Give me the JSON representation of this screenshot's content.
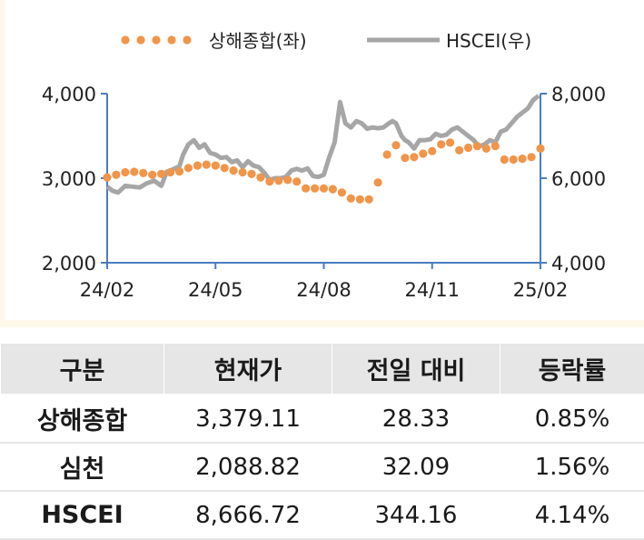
{
  "chart_data": {
    "type": "line",
    "legend": [
      "상해종합(좌)",
      "HSCEI(우)"
    ],
    "legend_position": "top",
    "x_tick_labels": [
      "24/02",
      "24/05",
      "24/08",
      "24/11",
      "25/02"
    ],
    "y_left_ticks": [
      "4,000",
      "3,000",
      "2,000"
    ],
    "y_right_ticks": [
      "8,000",
      "6,000",
      "4,000"
    ],
    "y_left_range": [
      2000,
      4000
    ],
    "y_right_range": [
      4000,
      8000
    ],
    "x_range": [
      0,
      12
    ],
    "grid": false,
    "colors": {
      "shanghai": "#f0954a",
      "hscei": "#a6a6a6",
      "axis": "#4a7dbf"
    },
    "series": [
      {
        "name": "상해종합(좌)",
        "axis": "left",
        "style": "dotted",
        "x": [
          0.0,
          0.25,
          0.5,
          0.75,
          1.0,
          1.25,
          1.5,
          1.75,
          2.0,
          2.25,
          2.5,
          2.75,
          3.0,
          3.25,
          3.5,
          3.75,
          4.0,
          4.25,
          4.5,
          4.75,
          5.0,
          5.25,
          5.5,
          5.75,
          6.0,
          6.25,
          6.5,
          6.75,
          7.0,
          7.25,
          7.5,
          7.75,
          8.0,
          8.25,
          8.5,
          8.75,
          9.0,
          9.25,
          9.5,
          9.75,
          10.0,
          10.25,
          10.5,
          10.75,
          11.0,
          11.25,
          11.5,
          11.75,
          12.0
        ],
        "y": [
          3010,
          3040,
          3070,
          3075,
          3060,
          3040,
          3050,
          3070,
          3080,
          3120,
          3150,
          3160,
          3150,
          3120,
          3090,
          3070,
          3050,
          3010,
          2960,
          2970,
          2980,
          2960,
          2880,
          2880,
          2880,
          2870,
          2830,
          2760,
          2750,
          2750,
          2950,
          3280,
          3390,
          3240,
          3250,
          3290,
          3320,
          3400,
          3420,
          3330,
          3360,
          3380,
          3350,
          3380,
          3220,
          3220,
          3230,
          3250,
          3350
        ]
      },
      {
        "name": "HSCEI(우)",
        "axis": "right",
        "style": "solid",
        "x": [
          0.0,
          0.15,
          0.3,
          0.5,
          0.7,
          0.9,
          1.1,
          1.3,
          1.5,
          1.65,
          1.8,
          2.0,
          2.1,
          2.25,
          2.4,
          2.55,
          2.7,
          2.85,
          3.0,
          3.15,
          3.3,
          3.45,
          3.6,
          3.75,
          3.9,
          4.05,
          4.2,
          4.35,
          4.5,
          4.65,
          4.8,
          4.95,
          5.1,
          5.25,
          5.4,
          5.55,
          5.7,
          5.85,
          6.0,
          6.15,
          6.3,
          6.45,
          6.6,
          6.75,
          6.9,
          7.05,
          7.2,
          7.35,
          7.5,
          7.65,
          7.8,
          7.9,
          8.0,
          8.05,
          8.15,
          8.25,
          8.35,
          8.5,
          8.65,
          8.8,
          8.95,
          9.1,
          9.25,
          9.4,
          9.55,
          9.7,
          9.85,
          10.0,
          10.15,
          10.3,
          10.45,
          10.6,
          10.75,
          10.9,
          11.05,
          11.2,
          11.35,
          11.5,
          11.65,
          11.8,
          11.95
        ],
        "y": [
          5800,
          5700,
          5660,
          5820,
          5800,
          5780,
          5880,
          5940,
          5820,
          6150,
          6200,
          6280,
          6550,
          6800,
          6900,
          6720,
          6800,
          6600,
          6560,
          6480,
          6500,
          6380,
          6420,
          6260,
          6400,
          6300,
          6260,
          6130,
          5960,
          6000,
          6000,
          6030,
          6180,
          6220,
          6180,
          6230,
          6050,
          6030,
          6080,
          6500,
          6850,
          7800,
          7300,
          7200,
          7350,
          7300,
          7170,
          7200,
          7180,
          7200,
          7300,
          7350,
          7300,
          7200,
          7000,
          6900,
          6850,
          6700,
          6900,
          6900,
          6920,
          7050,
          7000,
          7030,
          7150,
          7200,
          7100,
          7000,
          6900,
          6750,
          6800,
          6900,
          6850,
          7100,
          7150,
          7300,
          7450,
          7550,
          7650,
          7850,
          7950
        ]
      }
    ]
  },
  "table": {
    "headers": [
      "구분",
      "현재가",
      "전일 대비",
      "등락률"
    ],
    "rows": [
      [
        "상해종합",
        "3,379.11",
        "28.33",
        "0.85%"
      ],
      [
        "심천",
        "2,088.82",
        "32.09",
        "1.56%"
      ],
      [
        "HSCEI",
        "8,666.72",
        "344.16",
        "4.14%"
      ]
    ]
  }
}
